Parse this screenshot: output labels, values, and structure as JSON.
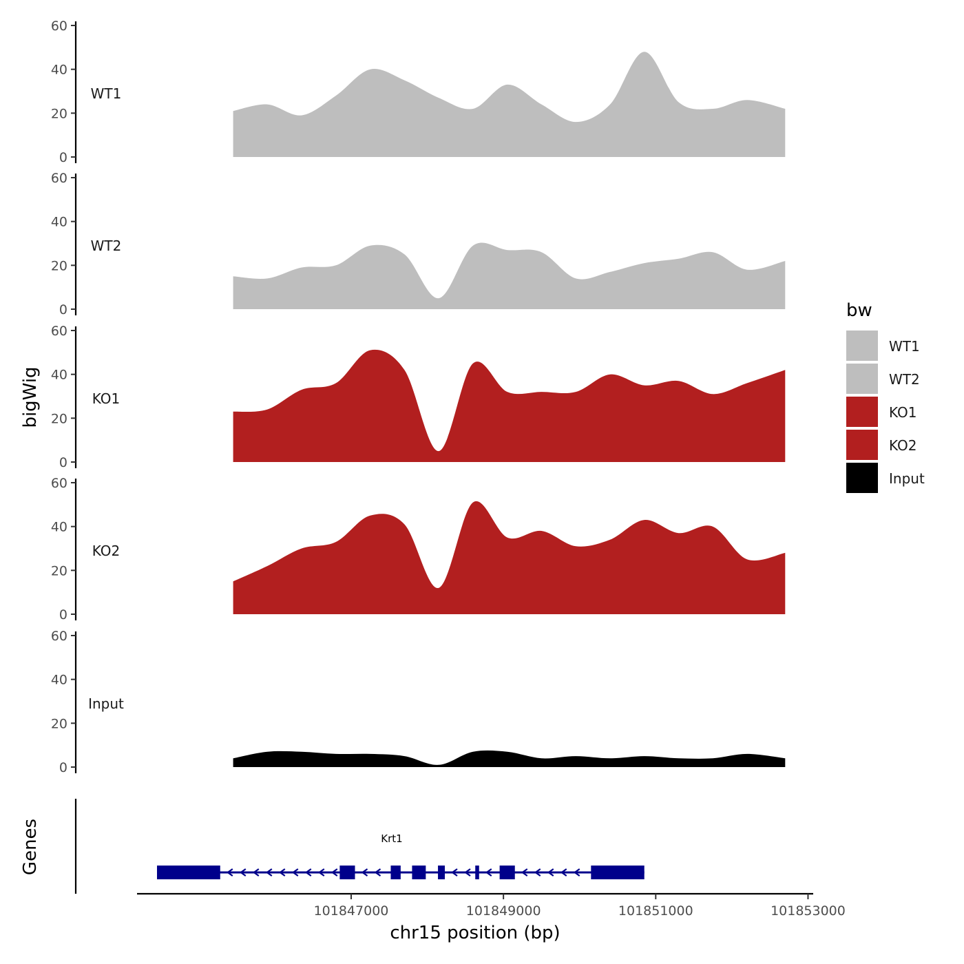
{
  "chart_data": {
    "type": "area",
    "ylabel_tracks": "bigWig",
    "ylabel_genes": "Genes",
    "xlabel": "chr15 position (bp)",
    "xlim": [
      101844450,
      101853050
    ],
    "ylim": [
      0,
      60
    ],
    "yticks": [
      0,
      20,
      40,
      60
    ],
    "xticks": [
      101847000,
      101849000,
      101851000,
      101853000
    ],
    "xtick_labels": [
      "101847000",
      "101849000",
      "101851000",
      "101853000"
    ],
    "grid": false,
    "legend": {
      "title": "bw",
      "placement": "right",
      "entries": [
        {
          "label": "WT1",
          "color": "#bebebe"
        },
        {
          "label": "WT2",
          "color": "#bebebe"
        },
        {
          "label": "KO1",
          "color": "#b21f1f"
        },
        {
          "label": "KO2",
          "color": "#b21f1f"
        },
        {
          "label": "Input",
          "color": "#000000"
        }
      ]
    },
    "x": [
      101845450,
      101845900,
      101846350,
      101846800,
      101847250,
      101847700,
      101848150,
      101848600,
      101849050,
      101849500,
      101849950,
      101850400,
      101850850,
      101851300,
      101851750,
      101852200,
      101852700
    ],
    "series": [
      {
        "name": "WT1",
        "color": "#bebebe",
        "values": [
          21,
          24,
          19,
          28,
          40,
          35,
          27,
          22,
          33,
          24,
          16,
          24,
          48,
          25,
          22,
          26,
          22
        ]
      },
      {
        "name": "WT2",
        "color": "#bebebe",
        "values": [
          15,
          14,
          19,
          20,
          29,
          25,
          5,
          29,
          27,
          26,
          14,
          17,
          21,
          23,
          26,
          18,
          22
        ]
      },
      {
        "name": "KO1",
        "color": "#b21f1f",
        "values": [
          23,
          24,
          33,
          36,
          51,
          42,
          5,
          45,
          32,
          32,
          32,
          40,
          35,
          37,
          31,
          36,
          42
        ]
      },
      {
        "name": "KO2",
        "color": "#b21f1f",
        "values": [
          15,
          22,
          30,
          33,
          45,
          41,
          12,
          51,
          35,
          38,
          31,
          34,
          43,
          37,
          40,
          25,
          28
        ]
      },
      {
        "name": "Input",
        "color": "#000000",
        "values": [
          4,
          7,
          7,
          6,
          6,
          5,
          1,
          7,
          7,
          4,
          5,
          4,
          5,
          4,
          4,
          6,
          4
        ]
      }
    ],
    "gene": {
      "name": "Krt1",
      "strand": "-",
      "color": "#00008b",
      "start": 101844450,
      "end": 101850850,
      "exons": [
        [
          101844450,
          101845280
        ],
        [
          101846850,
          101847050
        ],
        [
          101847520,
          101847650
        ],
        [
          101847800,
          101847980
        ],
        [
          101848140,
          101848230
        ],
        [
          101848630,
          101848680
        ],
        [
          101848950,
          101849150
        ],
        [
          101850150,
          101850850
        ]
      ]
    }
  }
}
